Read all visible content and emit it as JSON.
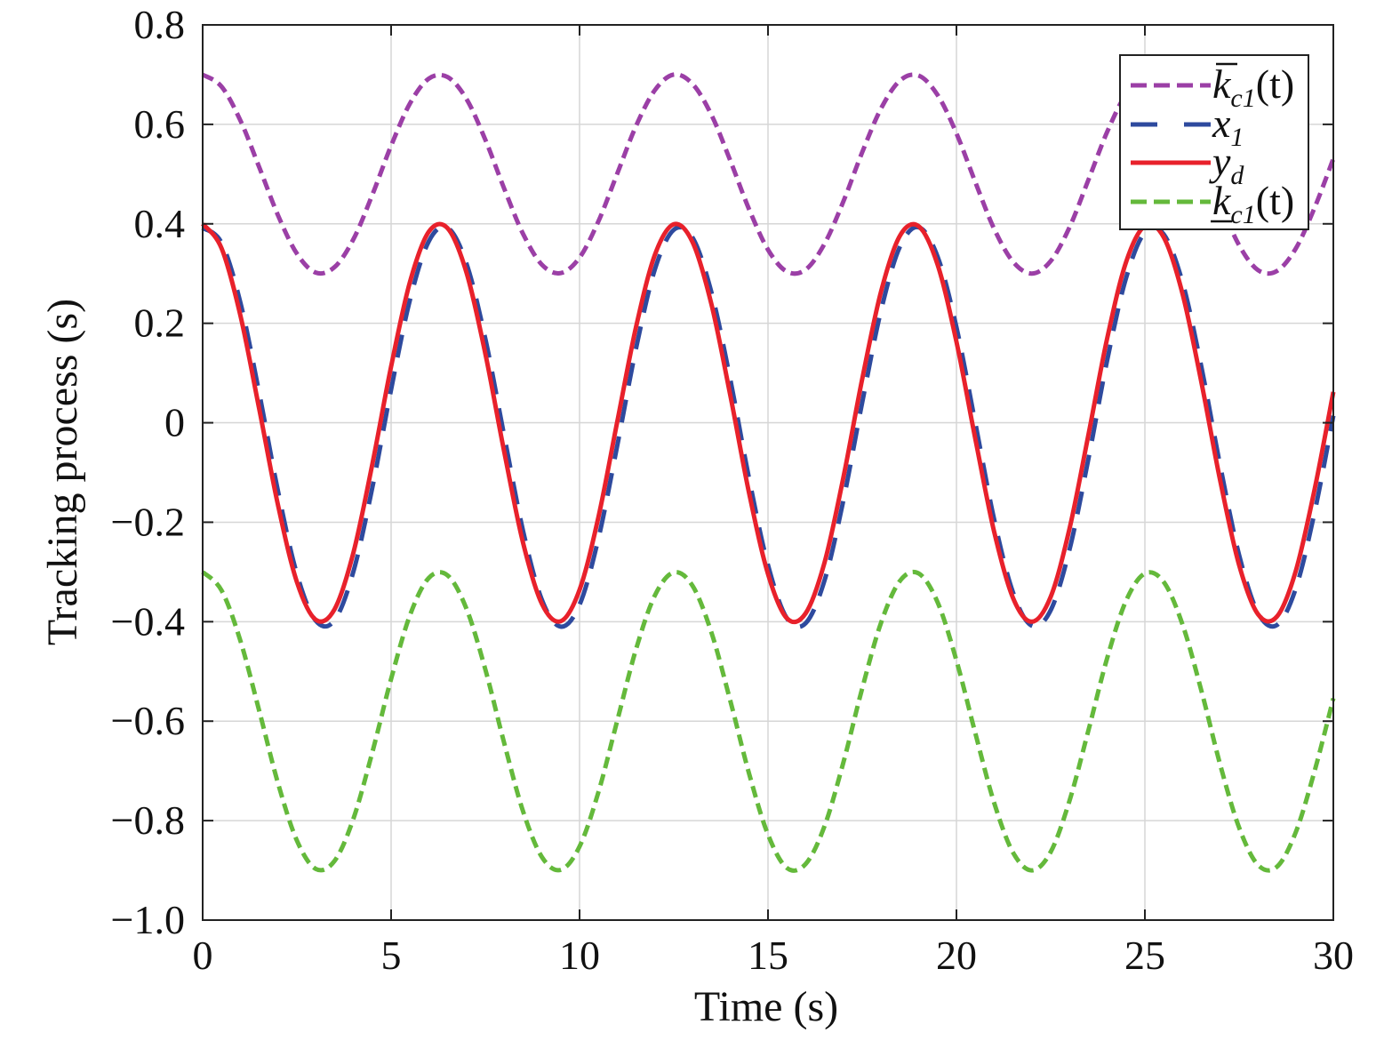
{
  "chart_data": {
    "type": "line",
    "title": "",
    "xlabel": "Time (s)",
    "ylabel": "Tracking process (s)",
    "xlim": [
      0,
      30
    ],
    "ylim": [
      -1.0,
      0.8
    ],
    "xticks": [
      0,
      5,
      10,
      15,
      20,
      25,
      30
    ],
    "xtick_labels": [
      "0",
      "5",
      "10",
      "15",
      "20",
      "25",
      "30"
    ],
    "yticks": [
      0.8,
      0.6,
      0.4,
      0.2,
      0,
      -0.2,
      -0.4,
      -0.6,
      -0.8,
      -1.0
    ],
    "ytick_labels": [
      "0.8",
      "0.6",
      "0.4",
      "0.2",
      "0",
      "−0.2",
      "−0.4",
      "−0.6",
      "−0.8",
      "−1.0"
    ],
    "grid": true,
    "legend_position": "top-right",
    "x": [
      0,
      0.5,
      1,
      1.5,
      2,
      2.5,
      3,
      3.5,
      4,
      4.5,
      5,
      5.5,
      6,
      6.5,
      7,
      7.5,
      8,
      8.5,
      9,
      9.5,
      10,
      10.5,
      11,
      11.5,
      12,
      12.5,
      13,
      13.5,
      14,
      14.5,
      15,
      15.5,
      16,
      16.5,
      17,
      17.5,
      18,
      18.5,
      19,
      19.5,
      20,
      20.5,
      21,
      21.5,
      22,
      22.5,
      23,
      23.5,
      24,
      24.5,
      25,
      25.5,
      26,
      26.5,
      27,
      27.5,
      28,
      28.5,
      29,
      29.5,
      30
    ],
    "series": [
      {
        "name": "k̄c1(t)",
        "label_base": "k",
        "label_sub": "c1",
        "label_suffix": "(t)",
        "label_mark": "overline",
        "color": "#9b3fa6",
        "style": "dash-dot",
        "values": [
          0.7,
          0.676,
          0.608,
          0.514,
          0.417,
          0.34,
          0.302,
          0.313,
          0.369,
          0.458,
          0.557,
          0.642,
          0.692,
          0.695,
          0.651,
          0.569,
          0.471,
          0.38,
          0.318,
          0.301,
          0.332,
          0.405,
          0.501,
          0.597,
          0.669,
          0.7,
          0.681,
          0.619,
          0.527,
          0.429,
          0.348,
          0.304,
          0.308,
          0.36,
          0.445,
          0.544,
          0.632,
          0.688,
          0.698,
          0.659,
          0.582,
          0.484,
          0.39,
          0.324,
          0.3,
          0.325,
          0.393,
          0.488,
          0.585,
          0.661,
          0.698,
          0.687,
          0.629,
          0.54,
          0.442,
          0.357,
          0.307,
          0.305,
          0.35,
          0.432,
          0.531
        ]
      },
      {
        "name": "x1",
        "label_base": "x",
        "label_sub": "1",
        "label_suffix": "",
        "label_mark": "none",
        "color": "#2e4a9e",
        "style": "dashed",
        "values": [
          0.392,
          0.362,
          0.242,
          0.06,
          -0.138,
          -0.304,
          -0.398,
          -0.397,
          -0.299,
          -0.131,
          0.067,
          0.247,
          0.365,
          0.392,
          0.32,
          0.169,
          -0.026,
          -0.217,
          -0.356,
          -0.41,
          -0.366,
          -0.233,
          -0.046,
          0.15,
          0.309,
          0.388,
          0.372,
          0.262,
          0.087,
          -0.113,
          -0.286,
          -0.393,
          -0.403,
          -0.317,
          -0.156,
          0.041,
          0.226,
          0.354,
          0.393,
          0.334,
          0.192,
          0.0,
          -0.194,
          -0.341,
          -0.408,
          -0.377,
          -0.255,
          -0.073,
          0.126,
          0.291,
          0.383,
          0.379,
          0.282,
          0.112,
          -0.087,
          -0.266,
          -0.382,
          -0.407,
          -0.334,
          -0.181,
          0.014
        ]
      },
      {
        "name": "yd",
        "label_base": "y",
        "label_sub": "d",
        "label_suffix": "",
        "label_mark": "none",
        "color": "#e8212b",
        "style": "solid",
        "values": [
          0.4,
          0.351,
          0.216,
          0.028,
          -0.166,
          -0.32,
          -0.396,
          -0.375,
          -0.261,
          -0.084,
          0.113,
          0.283,
          0.384,
          0.391,
          0.302,
          0.139,
          -0.058,
          -0.241,
          -0.364,
          -0.399,
          -0.336,
          -0.19,
          0.002,
          0.193,
          0.338,
          0.399,
          0.363,
          0.238,
          0.055,
          -0.142,
          -0.304,
          -0.393,
          -0.383,
          -0.281,
          -0.11,
          0.088,
          0.264,
          0.376,
          0.395,
          0.318,
          0.163,
          -0.032,
          -0.219,
          -0.352,
          -0.4,
          -0.35,
          -0.213,
          -0.025,
          0.17,
          0.323,
          0.396,
          0.373,
          0.259,
          0.081,
          -0.117,
          -0.286,
          -0.385,
          -0.39,
          -0.299,
          -0.135,
          0.062
        ]
      },
      {
        "name": "k̲c1(t)",
        "label_base": "k",
        "label_sub": "c1",
        "label_suffix": "(t)",
        "label_mark": "underline",
        "color": "#64b93b",
        "style": "dash-dot",
        "values": [
          -0.3,
          -0.337,
          -0.438,
          -0.579,
          -0.725,
          -0.84,
          -0.897,
          -0.881,
          -0.796,
          -0.663,
          -0.515,
          -0.387,
          -0.312,
          -0.307,
          -0.374,
          -0.496,
          -0.644,
          -0.781,
          -0.873,
          -0.899,
          -0.852,
          -0.743,
          -0.599,
          -0.455,
          -0.347,
          -0.301,
          -0.328,
          -0.422,
          -0.559,
          -0.706,
          -0.828,
          -0.895,
          -0.887,
          -0.811,
          -0.683,
          -0.534,
          -0.402,
          -0.318,
          -0.303,
          -0.361,
          -0.478,
          -0.624,
          -0.764,
          -0.864,
          -0.9,
          -0.863,
          -0.76,
          -0.619,
          -0.473,
          -0.358,
          -0.303,
          -0.32,
          -0.406,
          -0.539,
          -0.688,
          -0.814,
          -0.889,
          -0.893,
          -0.824,
          -0.701,
          -0.554
        ]
      }
    ]
  }
}
